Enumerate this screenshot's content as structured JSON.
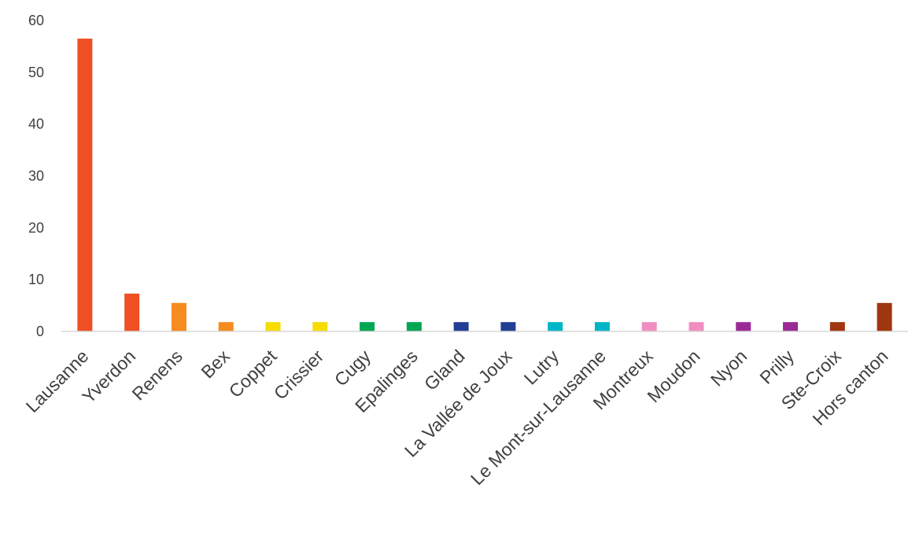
{
  "chart_data": {
    "type": "bar",
    "title": "",
    "xlabel": "",
    "ylabel": "",
    "ylim": [
      0,
      60
    ],
    "yticks": [
      "0",
      "10",
      "20",
      "30",
      "40",
      "50",
      "60"
    ],
    "grid": false,
    "legend": "none",
    "categories": [
      "Lausanne",
      "Yverdon",
      "Renens",
      "Bex",
      "Coppet",
      "Crissier",
      "Cugy",
      "Epalinges",
      "Gland",
      "La Vallée de Joux",
      "Lutry",
      "Le Mont-sur-Lausanne",
      "Montreux",
      "Moudon",
      "Nyon",
      "Prilly",
      "Ste-Croix",
      "Hors canton"
    ],
    "values": [
      56.5,
      7.3,
      5.5,
      1.8,
      1.8,
      1.8,
      1.8,
      1.8,
      1.8,
      1.8,
      1.8,
      1.8,
      1.8,
      1.8,
      1.8,
      1.8,
      1.8,
      5.5
    ],
    "colors": [
      "#ee5024",
      "#ee5024",
      "#f68b1f",
      "#f68b1f",
      "#f7dc00",
      "#f7dc00",
      "#00a651",
      "#00a651",
      "#233f94",
      "#233f94",
      "#00b5c7",
      "#00b5c7",
      "#f08ec1",
      "#f08ec1",
      "#9b2a96",
      "#9b2a96",
      "#a0360f",
      "#a0360f"
    ]
  }
}
